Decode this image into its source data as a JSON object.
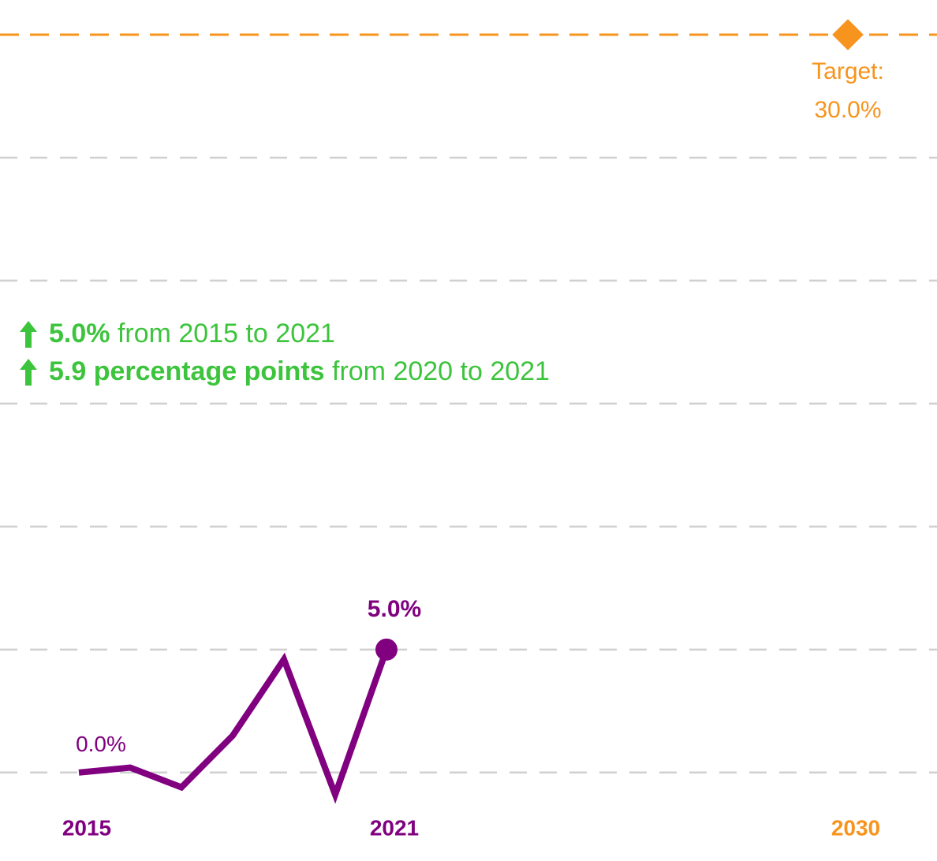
{
  "chart_data": {
    "type": "line",
    "x": [
      2015,
      2016,
      2017,
      2018,
      2019,
      2020,
      2021
    ],
    "series": [
      {
        "color": "#800080",
        "values": [
          0.0,
          0.2,
          -0.6,
          1.5,
          4.6,
          -0.9,
          5.0
        ],
        "value_labels": [
          "0.0%",
          null,
          null,
          null,
          null,
          null,
          "5.0%"
        ]
      }
    ],
    "xlim": [
      2015,
      2030
    ],
    "xticks": [
      2015,
      2021,
      2030
    ],
    "ylim": [
      -1,
      30
    ],
    "yticks": [
      0,
      5,
      10,
      15,
      20,
      25
    ],
    "grid": true,
    "target": {
      "x": 2030,
      "value": 30,
      "label": "Target:",
      "value_label": "30.0%",
      "color": "#f7941d"
    },
    "annotations": [
      {
        "bold": "5.0%",
        "text": "from 2015 to 2021"
      },
      {
        "bold": "5.9 percentage points",
        "text": "from 2020 to 2021"
      }
    ],
    "annotation_color": "#3dc43d"
  }
}
